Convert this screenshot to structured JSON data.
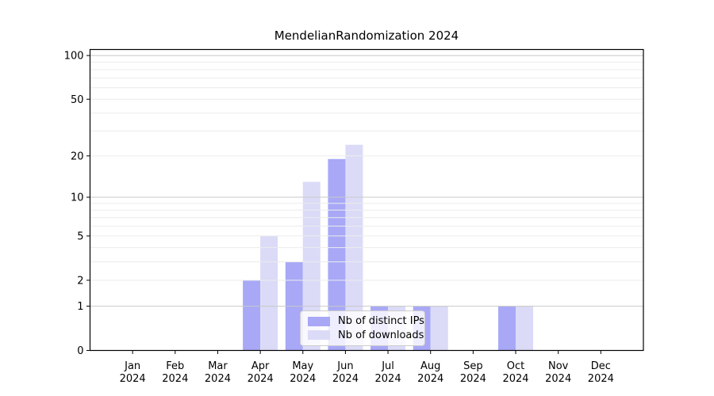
{
  "title": "MendelianRandomization 2024",
  "legend": {
    "items": [
      {
        "label": "Nb of distinct IPs",
        "color": "#a8a8f7"
      },
      {
        "label": "Nb of downloads",
        "color": "#dbdbf8"
      }
    ]
  },
  "chart_data": {
    "type": "bar",
    "title": "MendelianRandomization 2024",
    "categories": [
      "Jan 2024",
      "Feb 2024",
      "Mar 2024",
      "Apr 2024",
      "May 2024",
      "Jun 2024",
      "Jul 2024",
      "Aug 2024",
      "Sep 2024",
      "Oct 2024",
      "Nov 2024",
      "Dec 2024"
    ],
    "series": [
      {
        "name": "Nb of distinct IPs",
        "color": "#a8a8f7",
        "values": [
          0,
          0,
          0,
          2,
          3,
          19,
          1,
          1,
          0,
          1,
          0,
          0
        ]
      },
      {
        "name": "Nb of downloads",
        "color": "#dbdbf8",
        "values": [
          0,
          0,
          0,
          5,
          13,
          24,
          1,
          1,
          0,
          1,
          0,
          0
        ]
      }
    ],
    "yscale": "log10(value+1)",
    "ylim": [
      0,
      110
    ],
    "yticks": [
      100,
      50,
      20,
      10,
      5,
      2,
      1,
      0
    ],
    "yticks_minor": [
      2,
      3,
      4,
      5,
      6,
      7,
      8,
      9,
      20,
      30,
      40,
      50,
      60,
      70,
      80,
      90
    ],
    "grid": true,
    "grid_over_bars": true,
    "legend_position": "lower center inside"
  },
  "colors": {
    "grid_major": "#c8c8c8",
    "grid_minor": "#ececec",
    "axis": "#000000",
    "background": "#ffffff"
  }
}
